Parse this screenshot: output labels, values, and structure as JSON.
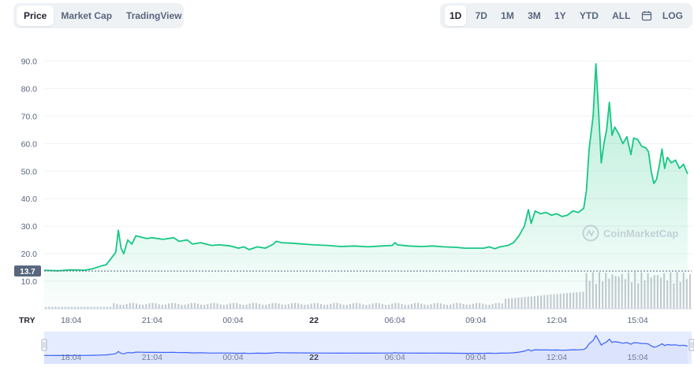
{
  "tabs": {
    "left": [
      {
        "label": "Price",
        "active": true
      },
      {
        "label": "Market Cap",
        "active": false
      },
      {
        "label": "TradingView",
        "active": false
      }
    ],
    "ranges": [
      {
        "label": "1D",
        "active": true
      },
      {
        "label": "7D",
        "active": false
      },
      {
        "label": "1M",
        "active": false
      },
      {
        "label": "3M",
        "active": false
      },
      {
        "label": "1Y",
        "active": false
      },
      {
        "label": "YTD",
        "active": false
      },
      {
        "label": "ALL",
        "active": false
      }
    ],
    "calendar_icon": "calendar-icon",
    "log_label": "LOG"
  },
  "currency_label": "TRY",
  "watermark": "CoinMarketCap",
  "colors": {
    "line": "#16c784",
    "fill_top": "#16c784",
    "volume": "#c4c8d0",
    "nav_line": "#3861fb",
    "nav_fill": "#e6ecff",
    "open_badge": "#58667e"
  },
  "chart_data": {
    "type": "line",
    "y_ticks": [
      "90.0",
      "80.0",
      "70.0",
      "60.0",
      "50.0",
      "40.0",
      "30.0",
      "20.0",
      "10.0"
    ],
    "ylim": [
      0,
      95
    ],
    "open_price": "13.7",
    "x_ticks": [
      {
        "label": "18:04",
        "bold": false
      },
      {
        "label": "21:04",
        "bold": false
      },
      {
        "label": "00:04",
        "bold": false
      },
      {
        "label": "22",
        "bold": true
      },
      {
        "label": "06:04",
        "bold": false
      },
      {
        "label": "09:04",
        "bold": false
      },
      {
        "label": "12:04",
        "bold": false
      },
      {
        "label": "15:04",
        "bold": false
      }
    ],
    "x_tick_hours": [
      1,
      4,
      7,
      10,
      13,
      16,
      19,
      22
    ],
    "x_range_hours": [
      0,
      24
    ],
    "series": [
      {
        "values": [
          [
            0.0,
            14.0
          ],
          [
            0.5,
            13.8
          ],
          [
            1.0,
            14.1
          ],
          [
            1.5,
            14.0
          ],
          [
            1.8,
            14.5
          ],
          [
            2.1,
            15.5
          ],
          [
            2.3,
            16.0
          ],
          [
            2.5,
            18.5
          ],
          [
            2.65,
            20.5
          ],
          [
            2.75,
            28.5
          ],
          [
            2.85,
            22.0
          ],
          [
            2.95,
            20.0
          ],
          [
            3.1,
            25.0
          ],
          [
            3.25,
            23.5
          ],
          [
            3.4,
            26.5
          ],
          [
            3.6,
            26.0
          ],
          [
            3.8,
            25.5
          ],
          [
            4.0,
            25.8
          ],
          [
            4.4,
            25.2
          ],
          [
            4.8,
            25.8
          ],
          [
            5.0,
            24.5
          ],
          [
            5.3,
            25.0
          ],
          [
            5.5,
            23.5
          ],
          [
            5.8,
            24.0
          ],
          [
            6.2,
            23.0
          ],
          [
            6.5,
            23.2
          ],
          [
            6.9,
            22.8
          ],
          [
            7.2,
            22.0
          ],
          [
            7.4,
            22.5
          ],
          [
            7.6,
            21.5
          ],
          [
            7.9,
            22.5
          ],
          [
            8.2,
            22.0
          ],
          [
            8.5,
            23.5
          ],
          [
            8.6,
            24.5
          ],
          [
            8.8,
            24.0
          ],
          [
            9.2,
            23.8
          ],
          [
            9.6,
            23.5
          ],
          [
            10.0,
            23.2
          ],
          [
            10.5,
            23.0
          ],
          [
            11.0,
            22.6
          ],
          [
            11.5,
            22.8
          ],
          [
            12.0,
            22.5
          ],
          [
            12.5,
            22.8
          ],
          [
            12.9,
            23.0
          ],
          [
            13.0,
            24.0
          ],
          [
            13.1,
            23.2
          ],
          [
            13.5,
            22.8
          ],
          [
            14.0,
            22.6
          ],
          [
            14.4,
            22.8
          ],
          [
            14.8,
            22.5
          ],
          [
            15.3,
            22.3
          ],
          [
            15.6,
            22.0
          ],
          [
            16.0,
            22.0
          ],
          [
            16.3,
            22.0
          ],
          [
            16.5,
            22.5
          ],
          [
            16.7,
            21.8
          ],
          [
            16.9,
            22.5
          ],
          [
            17.2,
            23.0
          ],
          [
            17.4,
            24.0
          ],
          [
            17.6,
            26.5
          ],
          [
            17.8,
            30.0
          ],
          [
            17.95,
            36.0
          ],
          [
            18.05,
            31.0
          ],
          [
            18.2,
            35.5
          ],
          [
            18.4,
            34.5
          ],
          [
            18.6,
            35.0
          ],
          [
            18.8,
            34.0
          ],
          [
            19.0,
            34.5
          ],
          [
            19.2,
            33.5
          ],
          [
            19.4,
            34.0
          ],
          [
            19.6,
            35.5
          ],
          [
            19.8,
            35.0
          ],
          [
            20.0,
            36.5
          ],
          [
            20.1,
            43.0
          ],
          [
            20.2,
            58.0
          ],
          [
            20.35,
            70.0
          ],
          [
            20.45,
            89.0
          ],
          [
            20.55,
            72.0
          ],
          [
            20.65,
            53.0
          ],
          [
            20.75,
            60.0
          ],
          [
            20.85,
            65.0
          ],
          [
            20.95,
            75.0
          ],
          [
            21.05,
            63.0
          ],
          [
            21.15,
            66.0
          ],
          [
            21.3,
            63.5
          ],
          [
            21.45,
            60.0
          ],
          [
            21.6,
            62.5
          ],
          [
            21.75,
            56.0
          ],
          [
            21.85,
            62.0
          ],
          [
            22.0,
            61.5
          ],
          [
            22.15,
            59.0
          ],
          [
            22.3,
            58.5
          ],
          [
            22.4,
            57.0
          ],
          [
            22.5,
            50.0
          ],
          [
            22.6,
            45.5
          ],
          [
            22.7,
            47.0
          ],
          [
            22.8,
            52.0
          ],
          [
            22.9,
            58.0
          ],
          [
            23.0,
            51.0
          ],
          [
            23.1,
            55.0
          ],
          [
            23.25,
            53.0
          ],
          [
            23.4,
            54.0
          ],
          [
            23.55,
            51.0
          ],
          [
            23.7,
            52.5
          ],
          [
            23.85,
            49.0
          ]
        ]
      }
    ]
  }
}
